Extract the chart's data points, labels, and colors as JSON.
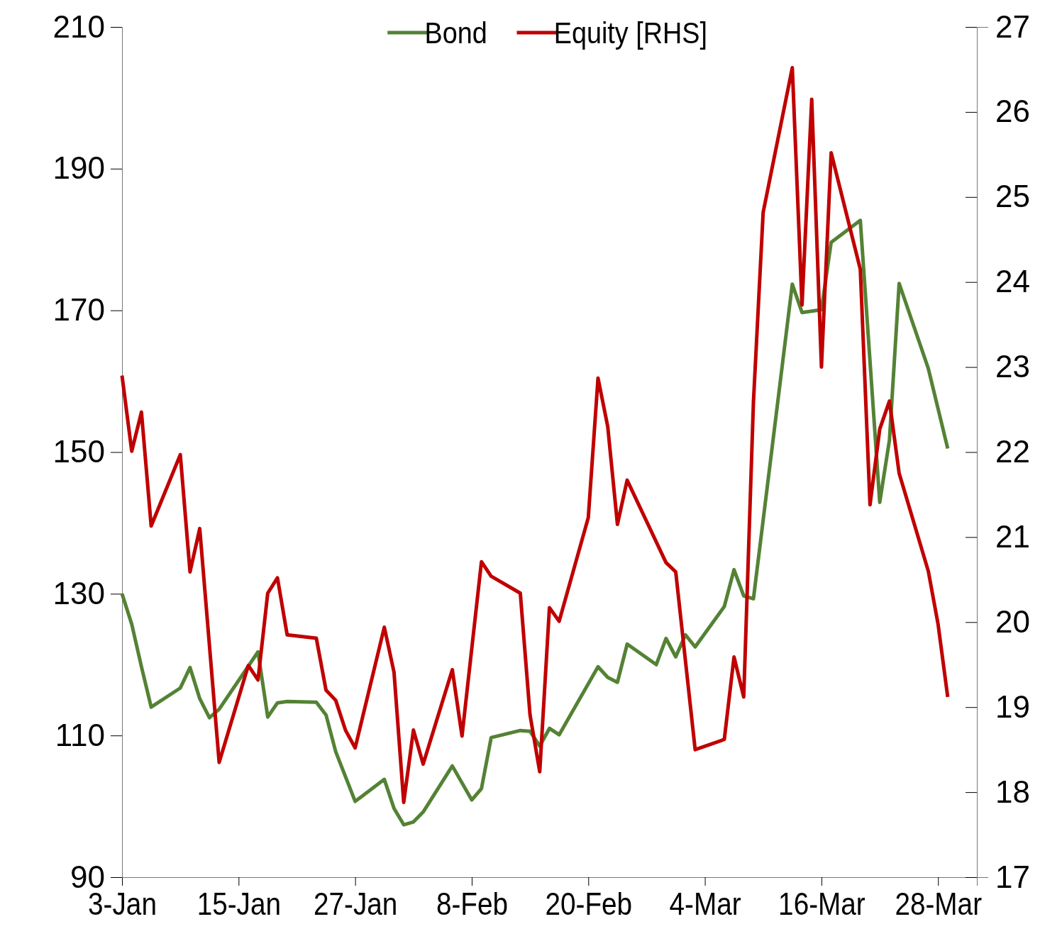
{
  "chart_data": {
    "type": "line",
    "legend": "top",
    "line_style": "solid",
    "marker": "none",
    "xlim": [
      "--01-03",
      "--04-01"
    ],
    "xticks": [
      {
        "value": "--01-03",
        "label": "3-Jan"
      },
      {
        "value": "--01-15",
        "label": "15-Jan"
      },
      {
        "value": "--01-27",
        "label": "27-Jan"
      },
      {
        "value": "--02-08",
        "label": "8-Feb"
      },
      {
        "value": "--02-20",
        "label": "20-Feb"
      },
      {
        "value": "--03-04",
        "label": "4-Mar"
      },
      {
        "value": "--03-16",
        "label": "16-Mar"
      },
      {
        "value": "--03-28",
        "label": "28-Mar"
      }
    ],
    "ylim": [
      90,
      210
    ],
    "yticks": [
      90,
      110,
      130,
      150,
      170,
      190,
      210
    ],
    "y2lim": [
      17,
      27
    ],
    "y2ticks": [
      17,
      18,
      19,
      20,
      21,
      22,
      23,
      24,
      25,
      26,
      27
    ],
    "series": [
      {
        "name": "Bond",
        "color": "#548235",
        "x": [
          "--01-03",
          "--01-04",
          "--01-05",
          "--01-06",
          "--01-09",
          "--01-10",
          "--01-11",
          "--01-12",
          "--01-13",
          "--01-17",
          "--01-18",
          "--01-19",
          "--01-20",
          "--01-23",
          "--01-24",
          "--01-25",
          "--01-27",
          "--01-30",
          "--01-31",
          "--02-01",
          "--02-02",
          "--02-03",
          "--02-06",
          "--02-08",
          "--02-09",
          "--02-10",
          "--02-13",
          "--02-14",
          "--02-15",
          "--02-16",
          "--02-17",
          "--02-21",
          "--02-22",
          "--02-23",
          "--02-24",
          "--02-27",
          "--02-28",
          "--03-01",
          "--03-02",
          "--03-03",
          "--03-06",
          "--03-07",
          "--03-08",
          "--03-09",
          "--03-13",
          "--03-14",
          "--03-15",
          "--03-16",
          "--03-17",
          "--03-20",
          "--03-22",
          "--03-23",
          "--03-24",
          "--03-27",
          "--03-29"
        ],
        "values": [
          130.0,
          125.7,
          119.7,
          114.0,
          116.7,
          119.6,
          115.2,
          112.5,
          113.7,
          121.8,
          112.6,
          114.6,
          114.8,
          114.7,
          112.9,
          107.7,
          100.7,
          103.8,
          99.7,
          97.4,
          97.8,
          99.2,
          105.7,
          100.9,
          102.5,
          109.7,
          110.7,
          110.6,
          108.5,
          111.0,
          110.1,
          119.7,
          118.2,
          117.5,
          122.9,
          120.0,
          123.7,
          121.1,
          124.2,
          122.5,
          128.2,
          133.4,
          129.7,
          129.3,
          173.7,
          169.7,
          null,
          170.1,
          179.6,
          182.7,
          142.9,
          151.7,
          173.8,
          161.8,
          150.5
        ]
      },
      {
        "name": "Equity [RHS]",
        "color": "#c00000",
        "axis": "y2",
        "x": [
          "--01-03",
          "--01-04",
          "--01-05",
          "--01-06",
          "--01-09",
          "--01-10",
          "--01-11",
          "--01-13",
          "--01-16",
          "--01-17",
          "--01-18",
          "--01-19",
          "--01-20",
          "--01-23",
          "--01-24",
          "--01-25",
          "--01-26",
          "--01-27",
          "--01-30",
          "--01-31",
          "--02-01",
          "--02-02",
          "--02-03",
          "--02-06",
          "--02-07",
          "--02-09",
          "--02-10",
          "--02-13",
          "--02-14",
          "--02-15",
          "--02-16",
          "--02-17",
          "--02-20",
          "--02-21",
          "--02-22",
          "--02-23",
          "--02-24",
          "--02-28",
          "--03-01",
          "--03-03",
          "--03-06",
          "--03-07",
          "--03-08",
          "--03-09",
          "--03-10",
          "--03-13",
          "--03-14",
          "--03-15",
          "--03-16",
          "--03-17",
          "--03-20",
          "--03-21",
          "--03-22",
          "--03-23",
          "--03-24",
          "--03-27",
          "--03-28",
          "--03-29"
        ],
        "values": [
          22.9,
          22.01,
          22.47,
          21.13,
          21.97,
          20.59,
          21.1,
          18.35,
          19.49,
          19.32,
          20.34,
          20.52,
          19.85,
          19.81,
          19.2,
          19.08,
          18.73,
          18.52,
          19.94,
          19.41,
          17.88,
          18.73,
          18.33,
          19.44,
          18.66,
          20.71,
          20.54,
          20.34,
          18.91,
          18.24,
          20.17,
          20.01,
          21.23,
          22.87,
          22.3,
          21.15,
          21.67,
          20.7,
          20.59,
          18.5,
          18.62,
          19.59,
          19.12,
          22.59,
          24.82,
          26.52,
          23.73,
          26.15,
          23.0,
          25.52,
          24.15,
          21.38,
          22.27,
          22.6,
          21.75,
          20.6,
          19.98,
          19.12
        ]
      }
    ]
  }
}
